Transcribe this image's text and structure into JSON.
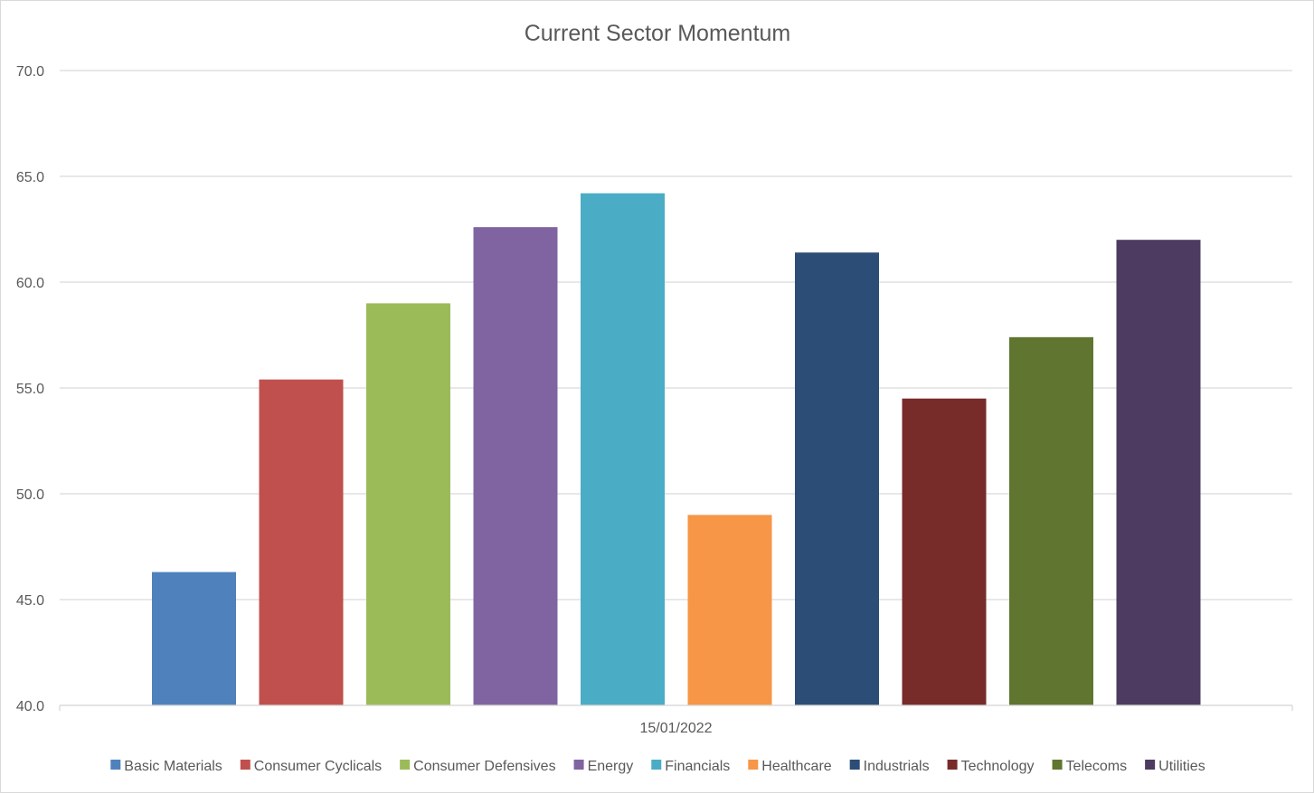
{
  "chart_data": {
    "type": "bar",
    "title": "Current Sector Momentum",
    "categories": [
      "15/01/2022"
    ],
    "ylim": [
      40,
      70
    ],
    "yticks": [
      "40.0",
      "45.0",
      "50.0",
      "55.0",
      "60.0",
      "65.0",
      "70.0"
    ],
    "grid": true,
    "legend_position": "bottom",
    "series": [
      {
        "name": "Basic Materials",
        "values": [
          46.3
        ],
        "color": "#4f81bd"
      },
      {
        "name": "Consumer Cyclicals",
        "values": [
          55.4
        ],
        "color": "#c0504d"
      },
      {
        "name": "Consumer Defensives",
        "values": [
          59.0
        ],
        "color": "#9bbb59"
      },
      {
        "name": "Energy",
        "values": [
          62.6
        ],
        "color": "#8064a2"
      },
      {
        "name": "Financials",
        "values": [
          64.2
        ],
        "color": "#4bacc6"
      },
      {
        "name": "Healthcare",
        "values": [
          49.0
        ],
        "color": "#f79646"
      },
      {
        "name": "Industrials",
        "values": [
          61.4
        ],
        "color": "#2c4d75"
      },
      {
        "name": "Technology",
        "values": [
          54.5
        ],
        "color": "#772c2a"
      },
      {
        "name": "Telecoms",
        "values": [
          57.4
        ],
        "color": "#5f7530"
      },
      {
        "name": "Utilities",
        "values": [
          62.0
        ],
        "color": "#4d3b62"
      }
    ]
  }
}
